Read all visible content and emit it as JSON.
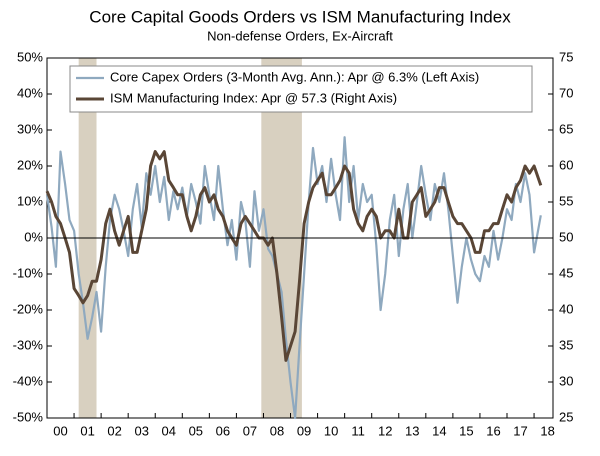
{
  "chart_data": {
    "type": "line",
    "title": "Core Capital Goods Orders vs ISM Manufacturing Index",
    "subtitle": "Non-defense Orders, Ex-Aircraft",
    "x": [
      2000,
      2000.17,
      2000.33,
      2000.5,
      2000.67,
      2000.83,
      2001,
      2001.17,
      2001.33,
      2001.5,
      2001.67,
      2001.83,
      2002,
      2002.17,
      2002.33,
      2002.5,
      2002.67,
      2002.83,
      2003,
      2003.17,
      2003.33,
      2003.5,
      2003.67,
      2003.83,
      2004,
      2004.17,
      2004.33,
      2004.5,
      2004.67,
      2004.83,
      2005,
      2005.17,
      2005.33,
      2005.5,
      2005.67,
      2005.83,
      2006,
      2006.17,
      2006.33,
      2006.5,
      2006.67,
      2006.83,
      2007,
      2007.17,
      2007.33,
      2007.5,
      2007.67,
      2007.83,
      2008,
      2008.17,
      2008.33,
      2008.5,
      2008.67,
      2008.83,
      2009,
      2009.17,
      2009.33,
      2009.5,
      2009.67,
      2009.83,
      2010,
      2010.17,
      2010.33,
      2010.5,
      2010.67,
      2010.83,
      2011,
      2011.17,
      2011.33,
      2011.5,
      2011.67,
      2011.83,
      2012,
      2012.17,
      2012.33,
      2012.5,
      2012.67,
      2012.83,
      2013,
      2013.17,
      2013.33,
      2013.5,
      2013.67,
      2013.83,
      2014,
      2014.17,
      2014.33,
      2014.5,
      2014.67,
      2014.83,
      2015,
      2015.17,
      2015.33,
      2015.5,
      2015.67,
      2015.83,
      2016,
      2016.17,
      2016.33,
      2016.5,
      2016.67,
      2016.83,
      2017,
      2017.17,
      2017.33,
      2017.5,
      2017.67,
      2017.83,
      2018,
      2018.25
    ],
    "series": [
      {
        "name": "Core Capex Orders (3-Month Avg. Ann.): Apr @ 6.3% (Left Axis)",
        "color": "#8fa9bf",
        "axis": "y",
        "values": [
          12,
          3,
          -8,
          24,
          15,
          5,
          2,
          -10,
          -18,
          -28,
          -22,
          -15,
          -26,
          -8,
          5,
          12,
          8,
          2,
          -5,
          8,
          15,
          3,
          18,
          12,
          20,
          10,
          17,
          5,
          13,
          8,
          14,
          6,
          15,
          10,
          4,
          20,
          12,
          5,
          20,
          8,
          -2,
          5,
          -6,
          10,
          5,
          -8,
          13,
          2,
          8,
          -3,
          -5,
          -10,
          -15,
          -28,
          -40,
          -50,
          -30,
          -10,
          10,
          25,
          15,
          20,
          10,
          22,
          12,
          5,
          28,
          10,
          20,
          5,
          15,
          10,
          12,
          -2,
          -20,
          -10,
          5,
          12,
          -5,
          8,
          15,
          0,
          10,
          20,
          12,
          5,
          15,
          10,
          18,
          8,
          -5,
          -18,
          -8,
          0,
          -6,
          -10,
          -12,
          -5,
          -8,
          2,
          -6,
          0,
          8,
          5,
          15,
          10,
          18,
          12,
          -4,
          6.3
        ]
      },
      {
        "name": "ISM Manufacturing Index: Apr @ 57.3 (Right Axis)",
        "color": "#5a4636",
        "axis": "y2",
        "values": [
          56.5,
          55,
          53,
          52,
          50,
          48,
          43,
          42,
          41,
          42,
          44,
          44,
          47,
          52,
          54,
          51,
          49,
          51,
          53,
          48,
          48,
          51,
          54,
          60,
          62,
          61,
          62,
          58,
          57,
          56,
          56,
          53,
          51,
          53,
          56,
          57,
          55,
          56,
          54,
          53,
          51,
          50,
          49,
          52,
          53,
          52,
          51,
          50,
          50,
          49,
          50,
          45,
          39,
          33,
          35,
          37,
          44,
          52,
          55,
          57,
          58,
          59,
          56,
          56,
          57,
          58,
          60,
          59,
          54,
          52,
          51,
          53,
          54,
          53,
          50,
          51,
          51,
          50,
          54,
          50,
          50,
          55,
          56,
          57,
          53,
          54,
          55,
          57,
          57,
          55,
          53,
          52,
          52,
          51,
          50,
          48,
          48,
          51,
          51,
          52,
          52,
          54,
          56,
          55,
          57,
          58,
          60,
          59,
          60,
          57.3
        ]
      }
    ],
    "recessions": [
      [
        2001.17,
        2001.83
      ],
      [
        2007.92,
        2009.42
      ]
    ],
    "xlim": [
      2000,
      2018.7
    ],
    "xticks": [
      {
        "value": 2000,
        "label": "00"
      },
      {
        "value": 2001,
        "label": "01"
      },
      {
        "value": 2002,
        "label": "02"
      },
      {
        "value": 2003,
        "label": "03"
      },
      {
        "value": 2004,
        "label": "04"
      },
      {
        "value": 2005,
        "label": "05"
      },
      {
        "value": 2006,
        "label": "06"
      },
      {
        "value": 2007,
        "label": "07"
      },
      {
        "value": 2008,
        "label": "08"
      },
      {
        "value": 2009,
        "label": "09"
      },
      {
        "value": 2010,
        "label": "10"
      },
      {
        "value": 2011,
        "label": "11"
      },
      {
        "value": 2012,
        "label": "12"
      },
      {
        "value": 2013,
        "label": "13"
      },
      {
        "value": 2014,
        "label": "14"
      },
      {
        "value": 2015,
        "label": "15"
      },
      {
        "value": 2016,
        "label": "16"
      },
      {
        "value": 2017,
        "label": "17"
      },
      {
        "value": 2018,
        "label": "18"
      }
    ],
    "ylim": [
      -50,
      50
    ],
    "yticks": [
      {
        "value": -50,
        "label": "-50%"
      },
      {
        "value": -40,
        "label": "-40%"
      },
      {
        "value": -30,
        "label": "-30%"
      },
      {
        "value": -20,
        "label": "-20%"
      },
      {
        "value": -10,
        "label": "-10%"
      },
      {
        "value": 0,
        "label": "0%"
      },
      {
        "value": 10,
        "label": "10%"
      },
      {
        "value": 20,
        "label": "20%"
      },
      {
        "value": 30,
        "label": "30%"
      },
      {
        "value": 40,
        "label": "40%"
      },
      {
        "value": 50,
        "label": "50%"
      }
    ],
    "y2lim": [
      25,
      75
    ],
    "y2ticks": [
      25,
      30,
      35,
      40,
      45,
      50,
      55,
      60,
      65,
      70,
      75
    ]
  }
}
